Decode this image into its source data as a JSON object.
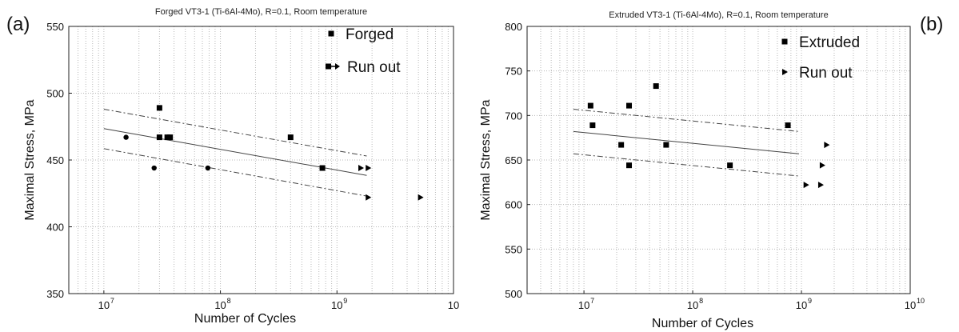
{
  "chart_data": [
    {
      "type": "scatter",
      "panel_label": "(a)",
      "title": "Forged VT3-1 (Ti-6Al-4Mo), R=0.1, Room temperature",
      "xlabel": "Number of Cycles",
      "ylabel": "Maximal Stress, MPa",
      "xscale": "log",
      "xlim": [
        5000000.0,
        10000000000.0
      ],
      "ylim": [
        350,
        550
      ],
      "yticks": [
        "350",
        "400",
        "450",
        "500",
        "550"
      ],
      "xticks": [
        {
          "value": 10000000.0,
          "base": "10",
          "exp": "7"
        },
        {
          "value": 100000000.0,
          "base": "10",
          "exp": "8"
        },
        {
          "value": 1000000000.0,
          "base": "10",
          "exp": "9"
        },
        {
          "value": 10000000000.0,
          "base": "10",
          "exp": ""
        }
      ],
      "grid": true,
      "legend": {
        "position": "top-right",
        "entries": [
          {
            "label": "Forged",
            "marker": "square"
          },
          {
            "label": "Run out",
            "marker": "square-arrow"
          }
        ]
      },
      "series": [
        {
          "name": "Forged",
          "marker": "square",
          "points": [
            [
              30000000.0,
              489
            ],
            [
              30000000.0,
              467
            ],
            [
              35000000.0,
              467
            ],
            [
              37000000.0,
              467
            ],
            [
              400000000.0,
              467
            ],
            [
              750000000.0,
              444
            ]
          ]
        },
        {
          "name": "",
          "marker": "circle",
          "points": [
            [
              15500000.0,
              467
            ],
            [
              27000000.0,
              444
            ],
            [
              78000000.0,
              444
            ]
          ]
        },
        {
          "name": "Run out",
          "marker": "triangle",
          "points": [
            [
              1600000000.0,
              444
            ],
            [
              1850000000.0,
              444
            ],
            [
              1850000000.0,
              422
            ],
            [
              5200000000.0,
              422
            ]
          ]
        }
      ],
      "fit": {
        "x": [
          10000000.0,
          1800000000.0
        ],
        "y": [
          473.5,
          438.5
        ]
      },
      "bounds_upper": {
        "x": [
          10000000.0,
          1800000000.0
        ],
        "y": [
          488,
          453
        ]
      },
      "bounds_lower": {
        "x": [
          10000000.0,
          1800000000.0
        ],
        "y": [
          458.5,
          423
        ]
      }
    },
    {
      "type": "scatter",
      "panel_label": "(b)",
      "title": "Extruded VT3-1 (Ti-6Al-4Mo), R=0.1, Room temperature",
      "xlabel": "Number of Cycles",
      "ylabel": "Maximal Stress, MPa",
      "xscale": "log",
      "xlim": [
        3000000.0,
        10000000000.0
      ],
      "ylim": [
        500,
        800
      ],
      "yticks": [
        "500",
        "550",
        "600",
        "650",
        "700",
        "750",
        "800"
      ],
      "xticks": [
        {
          "value": 10000000.0,
          "base": "10",
          "exp": "7"
        },
        {
          "value": 100000000.0,
          "base": "10",
          "exp": "8"
        },
        {
          "value": 1000000000.0,
          "base": "10",
          "exp": "9"
        },
        {
          "value": 10000000000.0,
          "base": "10",
          "exp": "10"
        }
      ],
      "grid": true,
      "legend": {
        "position": "top-right",
        "entries": [
          {
            "label": "Extruded",
            "marker": "square"
          },
          {
            "label": "Run out",
            "marker": "triangle"
          }
        ]
      },
      "series": [
        {
          "name": "Extruded",
          "marker": "square",
          "points": [
            [
              11500000.0,
              711
            ],
            [
              12000000.0,
              689
            ],
            [
              22000000.0,
              667
            ],
            [
              26000000.0,
              711
            ],
            [
              26000000.0,
              644
            ],
            [
              46000000.0,
              733
            ],
            [
              57000000.0,
              667
            ],
            [
              220000000.0,
              644
            ],
            [
              750000000.0,
              689
            ]
          ]
        },
        {
          "name": "Run out",
          "marker": "triangle",
          "points": [
            [
              1100000000.0,
              622
            ],
            [
              1500000000.0,
              622
            ],
            [
              1550000000.0,
              644
            ],
            [
              1700000000.0,
              667
            ]
          ]
        }
      ],
      "fit": {
        "x": [
          8000000.0,
          950000000.0
        ],
        "y": [
          682,
          657
        ]
      },
      "bounds_upper": {
        "x": [
          8000000.0,
          950000000.0
        ],
        "y": [
          707,
          682
        ]
      },
      "bounds_lower": {
        "x": [
          8000000.0,
          950000000.0
        ],
        "y": [
          657,
          632
        ]
      }
    }
  ]
}
